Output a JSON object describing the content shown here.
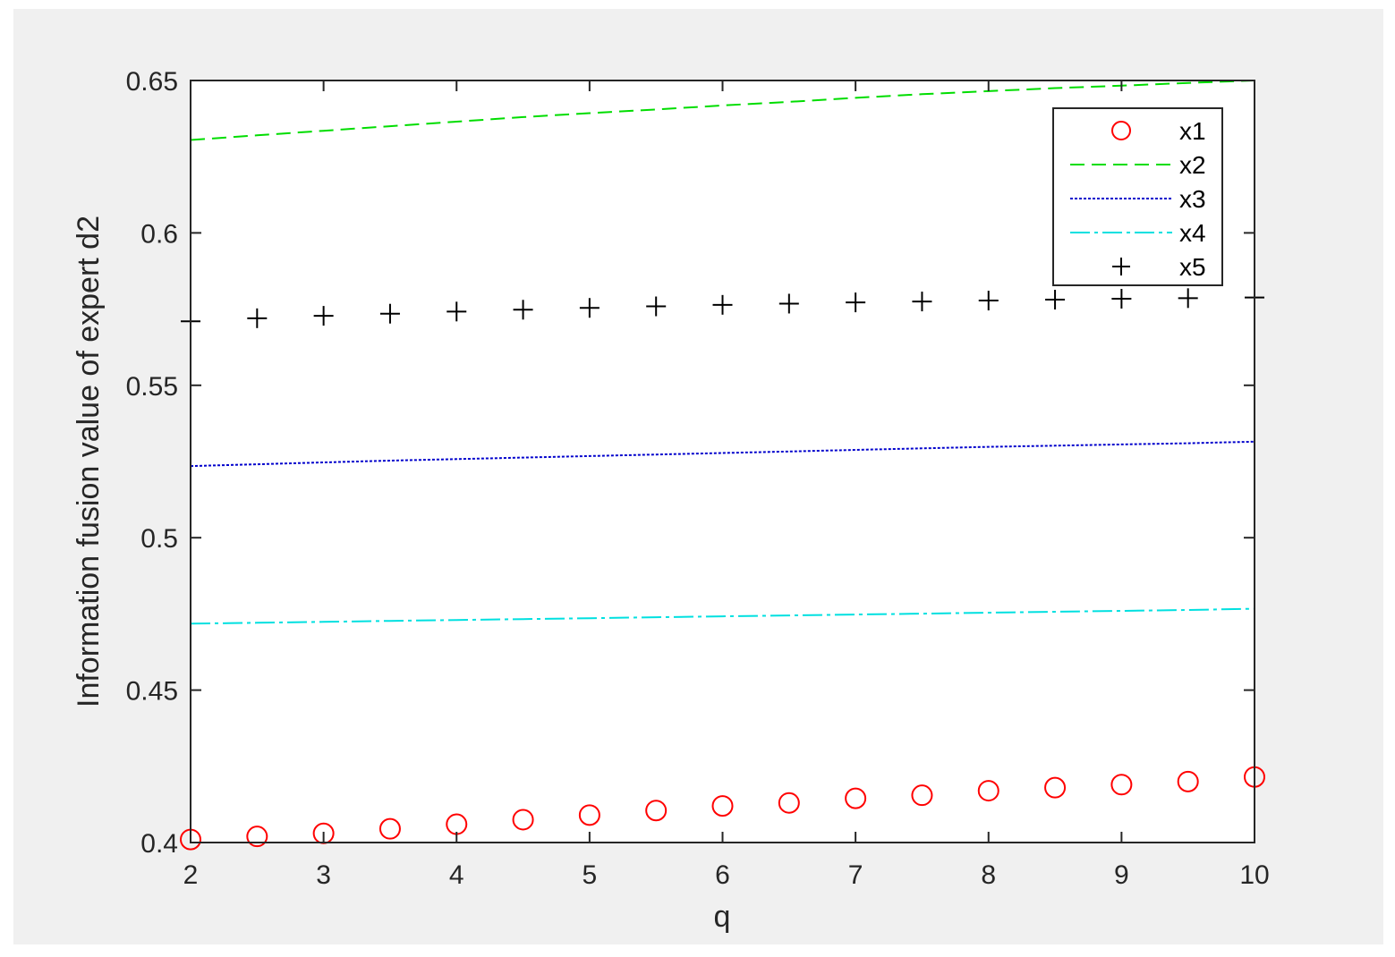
{
  "chart_data": {
    "type": "line",
    "title": "",
    "xlabel": "q",
    "ylabel": "Information fusion value of expert d2",
    "xlim": [
      2,
      10
    ],
    "ylim": [
      0.4,
      0.65
    ],
    "xticks": [
      "2",
      "3",
      "4",
      "5",
      "6",
      "7",
      "8",
      "9",
      "10"
    ],
    "yticks": [
      "0.4",
      "0.45",
      "0.5",
      "0.55",
      "0.6",
      "0.65"
    ],
    "grid": false,
    "legend_position": "top-right",
    "x": [
      2,
      2.5,
      3,
      3.5,
      4,
      4.5,
      5,
      5.5,
      6,
      6.5,
      7,
      7.5,
      8,
      8.5,
      9,
      9.5,
      10
    ],
    "series": [
      {
        "name": "x1",
        "style": "markers-circle",
        "color": "#ff0000",
        "values": [
          0.401,
          0.402,
          0.403,
          0.4045,
          0.406,
          0.4075,
          0.409,
          0.4105,
          0.412,
          0.413,
          0.4145,
          0.4155,
          0.417,
          0.418,
          0.419,
          0.42,
          0.4215
        ]
      },
      {
        "name": "x2",
        "style": "dashed",
        "color": "#00dd00",
        "values": [
          0.6305,
          0.632,
          0.6335,
          0.635,
          0.6365,
          0.638,
          0.6393,
          0.6405,
          0.6418,
          0.643,
          0.6443,
          0.6455,
          0.6465,
          0.6475,
          0.6483,
          0.6492,
          0.65
        ]
      },
      {
        "name": "x3",
        "style": "dotted",
        "color": "#0000cc",
        "values": [
          0.5235,
          0.5241,
          0.5247,
          0.5253,
          0.5258,
          0.5263,
          0.5268,
          0.5273,
          0.5278,
          0.5283,
          0.5288,
          0.5293,
          0.5298,
          0.5302,
          0.5306,
          0.531,
          0.5315
        ]
      },
      {
        "name": "x4",
        "style": "dashdot",
        "color": "#00e0e0",
        "values": [
          0.4718,
          0.4721,
          0.4724,
          0.4727,
          0.473,
          0.4733,
          0.4736,
          0.4739,
          0.4742,
          0.4745,
          0.4748,
          0.4751,
          0.4754,
          0.4757,
          0.476,
          0.4763,
          0.4767
        ]
      },
      {
        "name": "x5",
        "style": "markers-plus",
        "color": "#000000",
        "values": [
          0.571,
          0.572,
          0.5728,
          0.5735,
          0.5742,
          0.5748,
          0.5754,
          0.5759,
          0.5764,
          0.5768,
          0.5772,
          0.5775,
          0.5778,
          0.5781,
          0.5784,
          0.5786,
          0.5788
        ]
      }
    ]
  }
}
